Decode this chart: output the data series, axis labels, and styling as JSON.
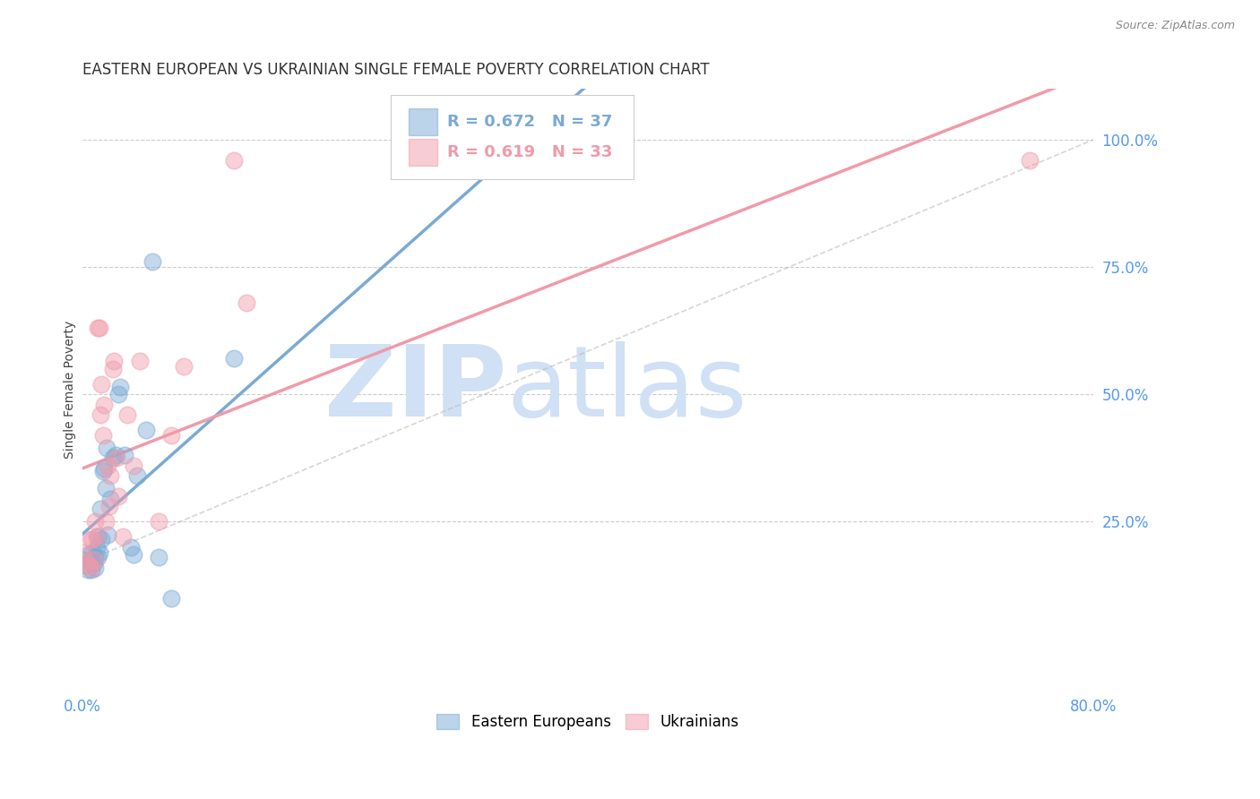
{
  "title": "EASTERN EUROPEAN VS UKRAINIAN SINGLE FEMALE POVERTY CORRELATION CHART",
  "source": "Source: ZipAtlas.com",
  "ylabel": "Single Female Poverty",
  "right_ytick_labels": [
    "100.0%",
    "75.0%",
    "50.0%",
    "25.0%"
  ],
  "right_ytick_values": [
    1.0,
    0.75,
    0.5,
    0.25
  ],
  "xlim": [
    0.0,
    0.8
  ],
  "ylim": [
    -0.08,
    1.1
  ],
  "xtick_values": [
    0.0,
    0.1,
    0.2,
    0.3,
    0.4,
    0.5,
    0.6,
    0.7,
    0.8
  ],
  "xticklabels": [
    "0.0%",
    "",
    "",
    "",
    "",
    "",
    "",
    "",
    "80.0%"
  ],
  "watermark_zip": "ZIP",
  "watermark_atlas": "atlas",
  "watermark_color": "#d0e0f5",
  "blue_color": "#7aaad4",
  "pink_color": "#f09aaa",
  "blue_label": "Eastern Europeans",
  "pink_label": "Ukrainians",
  "R_blue": "0.672",
  "N_blue": "37",
  "R_pink": "0.619",
  "N_pink": "33",
  "blue_x": [
    0.0,
    0.002,
    0.004,
    0.005,
    0.006,
    0.007,
    0.008,
    0.009,
    0.01,
    0.01,
    0.011,
    0.012,
    0.012,
    0.013,
    0.014,
    0.015,
    0.016,
    0.017,
    0.018,
    0.019,
    0.02,
    0.022,
    0.024,
    0.026,
    0.028,
    0.03,
    0.033,
    0.038,
    0.04,
    0.043,
    0.05,
    0.055,
    0.06,
    0.07,
    0.12,
    0.29,
    0.385
  ],
  "blue_y": [
    0.175,
    0.165,
    0.155,
    0.185,
    0.17,
    0.155,
    0.19,
    0.17,
    0.16,
    0.18,
    0.2,
    0.22,
    0.18,
    0.19,
    0.275,
    0.215,
    0.35,
    0.355,
    0.315,
    0.395,
    0.225,
    0.295,
    0.375,
    0.38,
    0.5,
    0.515,
    0.38,
    0.2,
    0.185,
    0.34,
    0.43,
    0.76,
    0.18,
    0.1,
    0.57,
    0.96,
    0.96
  ],
  "blue_s": 180,
  "pink_x": [
    0.0,
    0.003,
    0.005,
    0.006,
    0.007,
    0.008,
    0.009,
    0.01,
    0.011,
    0.012,
    0.013,
    0.014,
    0.015,
    0.016,
    0.017,
    0.018,
    0.02,
    0.021,
    0.022,
    0.024,
    0.025,
    0.027,
    0.028,
    0.032,
    0.035,
    0.04,
    0.045,
    0.06,
    0.07,
    0.08,
    0.12,
    0.13,
    0.75
  ],
  "pink_y": [
    0.19,
    0.17,
    0.165,
    0.215,
    0.16,
    0.215,
    0.175,
    0.25,
    0.22,
    0.63,
    0.63,
    0.46,
    0.52,
    0.42,
    0.48,
    0.25,
    0.36,
    0.28,
    0.34,
    0.55,
    0.565,
    0.375,
    0.3,
    0.22,
    0.46,
    0.36,
    0.565,
    0.25,
    0.42,
    0.555,
    0.96,
    0.68,
    0.96
  ],
  "pink_s": 180,
  "grid_color": "#cccccc",
  "bg_color": "#ffffff",
  "title_color": "#333333",
  "axis_color": "#5599ee",
  "title_fontsize": 12,
  "tick_fontsize": 12
}
